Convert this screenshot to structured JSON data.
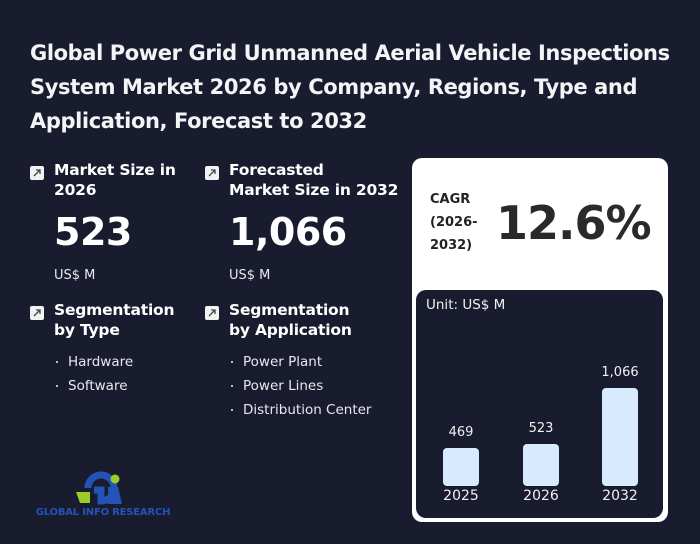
{
  "title": "Global Power Grid Unmanned Aerial Vehicle Inspections System Market 2026 by Company, Regions, Type and Application, Forecast to 2032",
  "market_size": {
    "label": "Market Size in 2026",
    "value": "523",
    "unit": "US$ M",
    "icon": "arrow-up-right-icon"
  },
  "forecast_size": {
    "label_line1": "Forecasted",
    "label_line2": "Market Size in 2032",
    "value": "1,066",
    "unit": "US$ M",
    "icon": "arrow-up-right-icon"
  },
  "segmentation_type": {
    "label_line1": "Segmentation",
    "label_line2": "by Type",
    "items": [
      "Hardware",
      "Software"
    ]
  },
  "segmentation_application": {
    "label_line1": "Segmentation",
    "label_line2": "by Application",
    "items": [
      "Power Plant",
      "Power Lines",
      "Distribution Center"
    ]
  },
  "cagr": {
    "label_line1": "CAGR",
    "label_line2": "(2026-",
    "label_line3": "2032)",
    "value": "12.6%"
  },
  "chart_data": {
    "type": "bar",
    "title": "",
    "unit_label": "Unit: US$ M",
    "categories": [
      "2025",
      "2026",
      "2032"
    ],
    "values": [
      469,
      523,
      1066
    ],
    "value_labels": [
      "469",
      "523",
      "1,066"
    ],
    "xlabel": "",
    "ylabel": "",
    "grid": false,
    "bar_color": "#d8eafd"
  },
  "logo": {
    "text": "GLOBAL INFO RESEARCH",
    "colors": {
      "blue": "#2453b8",
      "green": "#9ccb2c"
    }
  },
  "colors": {
    "background": "#191c2e",
    "card": "#ffffff"
  }
}
